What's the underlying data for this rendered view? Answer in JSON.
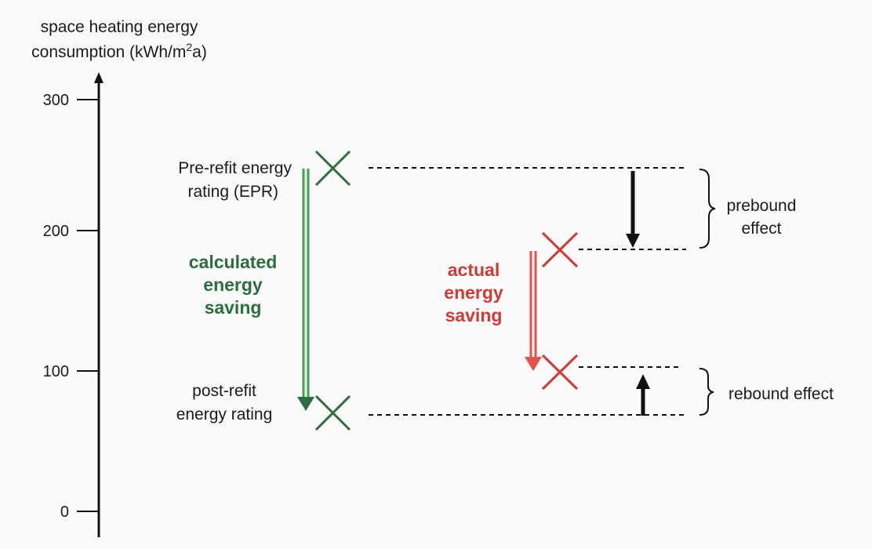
{
  "axis": {
    "title_line1": "space heating energy",
    "title_line2_prefix": "consumption (kWh/m",
    "title_line2_sup": "2",
    "title_line2_suffix": "a)",
    "ticks": [
      "300",
      "200",
      "100",
      "0"
    ]
  },
  "labels": {
    "pre_refit_line1": "Pre-refit energy",
    "pre_refit_line2": "rating (EPR)",
    "post_refit_line1": "post-refit",
    "post_refit_line2": "energy rating",
    "calculated_line1": "calculated",
    "calculated_line2": "energy",
    "calculated_line3": "saving",
    "actual_line1": "actual",
    "actual_line2": "energy",
    "actual_line3": "saving",
    "prebound_line1": "prebound",
    "prebound_line2": "effect",
    "rebound": "rebound effect"
  },
  "colors": {
    "green": "#2e6e3c",
    "green_arrow": "#3fa34d",
    "red": "#cf3b36",
    "red_arrow": "#e0524a",
    "black": "#111111"
  }
}
